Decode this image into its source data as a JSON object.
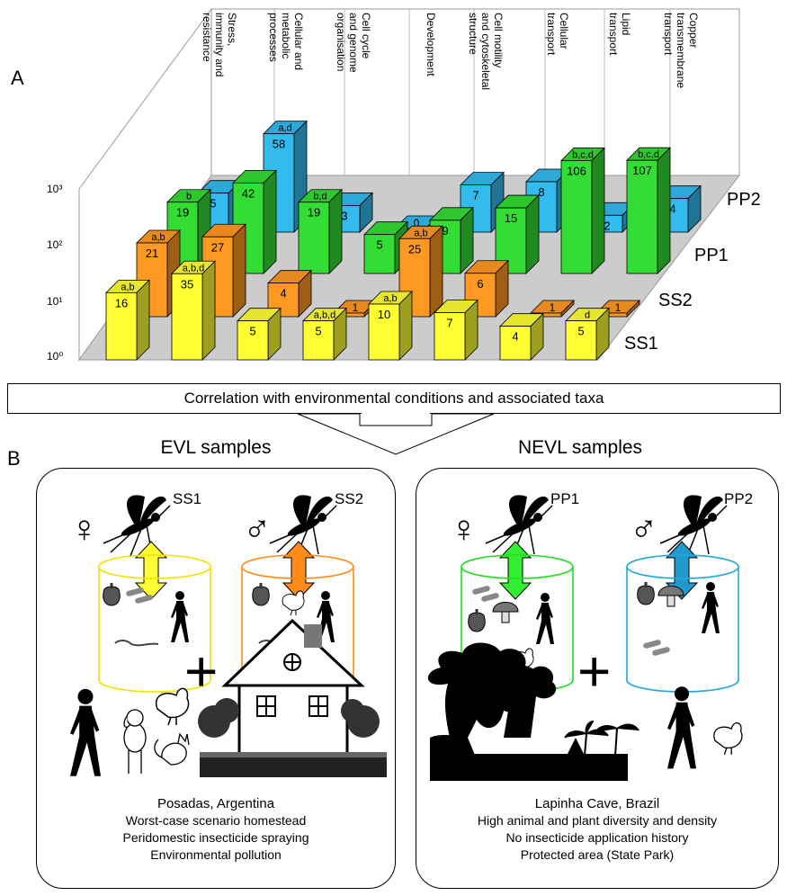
{
  "panel_a_label": "A",
  "panel_b_label": "B",
  "chart_data": {
    "type": "bar",
    "subtype": "3d-grouped-bar",
    "yscale": "log",
    "y_ticks": [
      "10⁰",
      "10¹",
      "10²",
      "10³"
    ],
    "categories": [
      "Stress, immunity and resistance",
      "Cellular and metabolic processes",
      "Cell cycle and genome organisation",
      "Development",
      "Cell motility and cytoskeletal structure",
      "Cellular transport",
      "Lipid transport",
      "Copper transmembrane transport"
    ],
    "category_lines": [
      [
        "Stress,",
        "immunity and",
        "resistance"
      ],
      [
        "Cellular and",
        "metabolic",
        "processes"
      ],
      [
        "Cell cycle",
        "and genome",
        "organisation"
      ],
      [
        "Development"
      ],
      [
        "Cell motility",
        "and cytoskeletal",
        "structure"
      ],
      [
        "Cellular",
        "transport"
      ],
      [
        "Lipid",
        "transport"
      ],
      [
        "Copper",
        "transmembrane",
        "transport"
      ]
    ],
    "series": [
      {
        "name": "SS1",
        "color": "#ffff33",
        "values": [
          16,
          35,
          5,
          5,
          10,
          7,
          4,
          5
        ],
        "labels": [
          "a,b",
          "a,b,d",
          "",
          "a,b,d",
          "a,b",
          "",
          "",
          "d"
        ]
      },
      {
        "name": "SS2",
        "color": "#ff9922",
        "values": [
          21,
          27,
          4,
          1,
          25,
          6,
          1,
          1
        ],
        "labels": [
          "a,b",
          "",
          "",
          "",
          "a,b",
          "",
          "",
          ""
        ]
      },
      {
        "name": "PP1",
        "color": "#33dd33",
        "values": [
          19,
          42,
          19,
          5,
          9,
          15,
          106,
          107
        ],
        "labels": [
          "b",
          "",
          "b,d",
          "",
          "",
          "",
          "b,c,d",
          "b,c,d"
        ]
      },
      {
        "name": "PP2",
        "color": "#33bbee",
        "values": [
          5,
          58,
          3,
          0,
          7,
          8,
          2,
          4
        ],
        "labels": [
          "",
          "a,d",
          "",
          "",
          "",
          "",
          "",
          ""
        ]
      }
    ]
  },
  "banner_text": "Correlation with environmental conditions and associated taxa",
  "groups": [
    {
      "title": "EVL samples",
      "samples": [
        "SS1",
        "SS2"
      ],
      "caption": [
        "Posadas, Argentina",
        "Worst-case scenario homestead",
        "Peridomestic insecticide spraying",
        "Environmental pollution"
      ]
    },
    {
      "title": "NEVL samples",
      "samples": [
        "PP1",
        "PP2"
      ],
      "caption": [
        "Lapinha Cave, Brazil",
        "High animal and plant diversity and density",
        "No insecticide application history",
        "Protected area (State Park)"
      ]
    }
  ],
  "symbols": {
    "female": "♀",
    "male": "♂",
    "plus": "+"
  },
  "colors": {
    "ss1": "#ffff33",
    "ss2": "#ff9922",
    "pp1": "#33dd33",
    "pp2": "#33bbee",
    "ss1_ring": "#f2e200",
    "ss2_ring": "#ff8c1a",
    "pp1_ring": "#22dd22",
    "pp2_ring": "#22a8d8"
  },
  "icons": [
    "sandfly-icon",
    "pepper-icon",
    "mushroom-icon",
    "human-icon",
    "chicken-icon",
    "dog-icon",
    "cat-icon",
    "lizard-icon",
    "house-icon",
    "tree-icon",
    "bacteria-icon",
    "trypanosome-icon"
  ]
}
